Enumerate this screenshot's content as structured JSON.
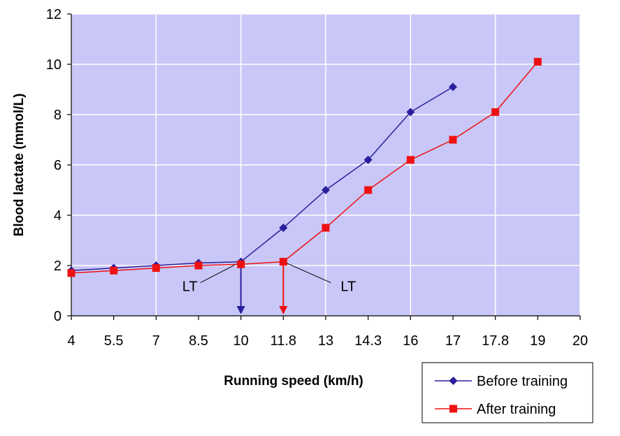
{
  "chart_data": {
    "type": "line",
    "title": "",
    "xlabel": "Running speed (km/h)",
    "ylabel": "Blood lactate (mmol/L)",
    "x_categories": [
      "4",
      "5.5",
      "7",
      "8.5",
      "10",
      "11.8",
      "13",
      "14.3",
      "16",
      "17",
      "17.8",
      "19",
      "20"
    ],
    "yticks": [
      0,
      2,
      4,
      6,
      8,
      10,
      12
    ],
    "ylim": [
      0,
      12
    ],
    "grid": true,
    "legend_position": "bottom-right",
    "series": [
      {
        "name": "Before training",
        "color": "#2b1f9c",
        "marker": "diamond",
        "x_index": [
          0,
          1,
          2,
          3,
          4,
          5,
          6,
          7,
          8,
          9
        ],
        "values": [
          1.8,
          1.9,
          2.0,
          2.1,
          2.15,
          3.5,
          5.0,
          6.2,
          8.1,
          9.1
        ]
      },
      {
        "name": "After training",
        "color": "#ee1111",
        "marker": "square",
        "x_index": [
          0,
          1,
          2,
          3,
          4,
          5,
          6,
          7,
          8,
          9,
          10,
          11
        ],
        "values": [
          1.7,
          1.8,
          1.9,
          2.0,
          2.05,
          2.15,
          3.5,
          5.0,
          6.2,
          7.0,
          8.1,
          10.1
        ]
      }
    ],
    "annotations": [
      {
        "label": "LT",
        "series": 0,
        "x_index": 4,
        "y": 2.15,
        "arrow_color": "#2b1f9c"
      },
      {
        "label": "LT",
        "series": 1,
        "x_index": 5,
        "y": 2.15,
        "arrow_color": "#ee1111"
      }
    ],
    "colors": {
      "plot_bg": "#c9c7f7",
      "grid": "#ffffff"
    }
  }
}
